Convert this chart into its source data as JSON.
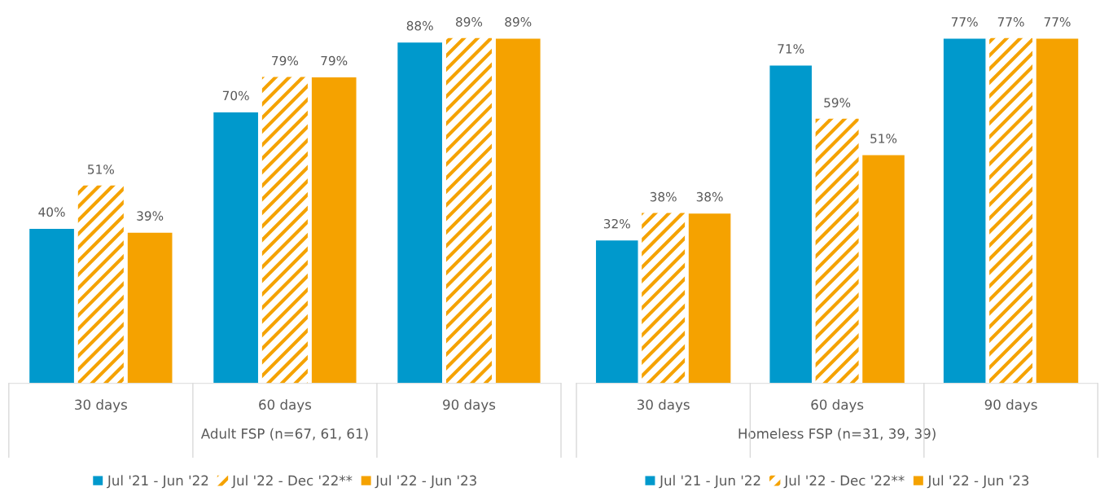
{
  "chart_data": [
    {
      "type": "bar",
      "xlabel": "Adult FSP (n=67, 61, 61)",
      "categories": [
        "30 days",
        "60 days",
        "90 days"
      ],
      "legend": "bottom",
      "series": [
        {
          "name": "Jul '21 - Jun '22",
          "color": "#0099cc",
          "values": [
            40,
            70,
            88
          ],
          "value_labels": [
            "40%",
            "70%",
            "88%"
          ]
        },
        {
          "name": "Jul '22 - Dec '22**",
          "color": "#f5a200",
          "values": [
            51,
            79,
            89
          ],
          "value_labels": [
            "51%",
            "79%",
            "89%"
          ]
        },
        {
          "name": "Jul '22 - Jun '23",
          "color": "#f5a200",
          "values": [
            39,
            79,
            89
          ],
          "value_labels": [
            "39%",
            "79%",
            "89%"
          ]
        }
      ]
    },
    {
      "type": "bar",
      "xlabel": "Homeless FSP (n=31, 39, 39)",
      "categories": [
        "30 days",
        "60 days",
        "90 days"
      ],
      "legend": "bottom",
      "series": [
        {
          "name": "Jul '21 - Jun '22",
          "color": "#0099cc",
          "values": [
            32,
            71,
            77
          ],
          "value_labels": [
            "32%",
            "71%",
            "77%"
          ]
        },
        {
          "name": "Jul '22 - Dec '22**",
          "color": "#f5a200",
          "values": [
            38,
            59,
            77
          ],
          "value_labels": [
            "38%",
            "59%",
            "77%"
          ]
        },
        {
          "name": "Jul '22 - Jun '23",
          "color": "#f5a200",
          "values": [
            38,
            51,
            77
          ],
          "value_labels": [
            "38%",
            "51%",
            "77%"
          ]
        }
      ]
    }
  ]
}
